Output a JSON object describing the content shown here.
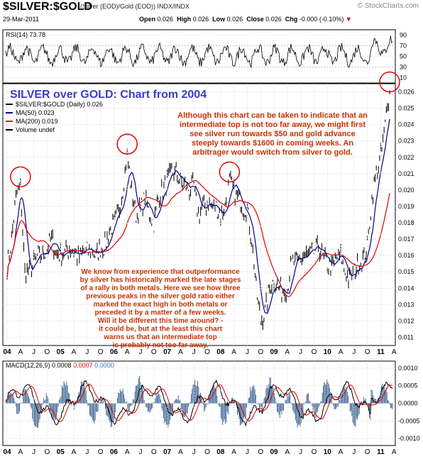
{
  "header": {
    "symbol": "$SILVER:$GOLD",
    "subtitle": "(Silver (EOD)/Gold (EOD)) INDX/INDX",
    "source": "© StockCharts.com",
    "date": "29-Mar-2011",
    "open_label": "Open",
    "open": "0.026",
    "high_label": "High",
    "high": "0.026",
    "low_label": "Low",
    "low": "0.026",
    "close_label": "Close",
    "close": "0.026",
    "chg_label": "Chg",
    "chg": "-0.000 (-0.10%)",
    "chg_arrow": "▼"
  },
  "rsi": {
    "label": "RSI(14) 73.78",
    "ticks": [
      "90",
      "70",
      "50",
      "30",
      "10"
    ]
  },
  "main": {
    "headline": "SILVER over GOLD: Chart from 2004",
    "legend_symbol": "$SILVER:$GOLD (Daily) 0.026",
    "legend_ma50": "MA(50) 0.023",
    "legend_ma200": "MA(200) 0.019",
    "legend_volume": "Volume undef",
    "annotation_top": [
      "Although this chart can be taken to indicate that an",
      "intermediate top is not too far away, we might first",
      "see silver run towards $50 and gold advance",
      "steeply towards $1600 in coming weeks. An",
      "arbitrager would switch from silver to gold."
    ],
    "annotation_bottom": [
      "We know from experience that outperformance",
      "by silver has historically marked the late stages",
      "of a rally in both metals. Here we see how three",
      "previous peaks in the silver gold ratio either",
      "marked the exact high in both metals or",
      "preceded it by a matter of a few weeks.",
      "Will it be different this time around? -",
      "it could be, but at the least this chart",
      "warns us that an intermediate top",
      "is probably not too far away."
    ],
    "y_ticks": [
      "0.026",
      "0.025",
      "0.024",
      "0.023",
      "0.022",
      "0.021",
      "0.020",
      "0.019",
      "0.018",
      "0.017",
      "0.016",
      "0.015",
      "0.014",
      "0.013",
      "0.012",
      "0.011"
    ]
  },
  "x_axis_labels": [
    "04",
    "A",
    "J",
    "O",
    "05",
    "A",
    "J",
    "O",
    "06",
    "A",
    "J",
    "O",
    "07",
    "A",
    "J",
    "O",
    "08",
    "A",
    "J",
    "O",
    "09",
    "A",
    "J",
    "O",
    "10",
    "A",
    "J",
    "O",
    "11",
    "A"
  ],
  "macd": {
    "label_prefix": "MACD(12,26,9)",
    "value1": "0.0008",
    "value2": "0.0007",
    "value3": "0.0000",
    "ticks": [
      "0.0010",
      "0.0005",
      "0.0000",
      "-0.0005",
      "-0.0010"
    ]
  },
  "colors": {
    "price": "#000000",
    "ma50": "#00008b",
    "ma200": "#dd0000",
    "annotation": "#c83200",
    "headline": "#3c3cc8",
    "circle": "#e00000",
    "macd_hist": "#4a6f9a"
  },
  "chart_data": {
    "type": "line",
    "title": "SILVER over GOLD: Chart from 2004",
    "x_range": [
      "2004-01",
      "2011-03"
    ],
    "ylim": [
      0.0105,
      0.0265
    ],
    "series": [
      {
        "name": "$SILVER:$GOLD (Daily)",
        "x": [
          "2004-01",
          "2004-02",
          "2004-03",
          "2004-04",
          "2004-05",
          "2004-06",
          "2004-07",
          "2004-08",
          "2004-09",
          "2004-10",
          "2004-11",
          "2004-12",
          "2005-01",
          "2005-02",
          "2005-03",
          "2005-04",
          "2005-05",
          "2005-06",
          "2005-07",
          "2005-08",
          "2005-09",
          "2005-10",
          "2005-11",
          "2005-12",
          "2006-01",
          "2006-02",
          "2006-03",
          "2006-04",
          "2006-05",
          "2006-06",
          "2006-07",
          "2006-08",
          "2006-09",
          "2006-10",
          "2006-11",
          "2006-12",
          "2007-01",
          "2007-02",
          "2007-03",
          "2007-04",
          "2007-05",
          "2007-06",
          "2007-07",
          "2007-08",
          "2007-09",
          "2007-10",
          "2007-11",
          "2007-12",
          "2008-01",
          "2008-02",
          "2008-03",
          "2008-04",
          "2008-05",
          "2008-06",
          "2008-07",
          "2008-08",
          "2008-09",
          "2008-10",
          "2008-11",
          "2008-12",
          "2009-01",
          "2009-02",
          "2009-03",
          "2009-04",
          "2009-05",
          "2009-06",
          "2009-07",
          "2009-08",
          "2009-09",
          "2009-10",
          "2009-11",
          "2009-12",
          "2010-01",
          "2010-02",
          "2010-03",
          "2010-04",
          "2010-05",
          "2010-06",
          "2010-07",
          "2010-08",
          "2010-09",
          "2010-10",
          "2010-11",
          "2010-12",
          "2011-01",
          "2011-02",
          "2011-03"
        ],
        "values": [
          0.0152,
          0.017,
          0.0195,
          0.0202,
          0.015,
          0.015,
          0.0155,
          0.016,
          0.016,
          0.0165,
          0.017,
          0.0162,
          0.016,
          0.0162,
          0.0165,
          0.0163,
          0.0158,
          0.0162,
          0.0163,
          0.0163,
          0.016,
          0.0165,
          0.0166,
          0.0175,
          0.018,
          0.0185,
          0.02,
          0.0222,
          0.02,
          0.0185,
          0.0188,
          0.0195,
          0.0185,
          0.018,
          0.0195,
          0.02,
          0.0205,
          0.021,
          0.021,
          0.0205,
          0.0203,
          0.02,
          0.0202,
          0.0185,
          0.019,
          0.0192,
          0.019,
          0.019,
          0.0185,
          0.019,
          0.0205,
          0.0198,
          0.0195,
          0.019,
          0.0188,
          0.017,
          0.014,
          0.012,
          0.0125,
          0.014,
          0.0145,
          0.014,
          0.0138,
          0.014,
          0.0155,
          0.0155,
          0.0158,
          0.016,
          0.016,
          0.0162,
          0.0165,
          0.0158,
          0.0155,
          0.0152,
          0.0158,
          0.016,
          0.015,
          0.0145,
          0.015,
          0.0155,
          0.0158,
          0.0165,
          0.0195,
          0.021,
          0.022,
          0.024,
          0.026
        ]
      },
      {
        "name": "MA(50)",
        "values_last": 0.023
      },
      {
        "name": "MA(200)",
        "values_last": 0.019
      }
    ],
    "rsi": {
      "range": [
        10,
        90
      ],
      "last": 73.78
    },
    "macd": {
      "ylim": [
        -0.001,
        0.001
      ],
      "macd_last": 0.0008,
      "signal_last": 0.0007,
      "hist_last": 0.0
    },
    "highlighted_peaks": [
      "2004-04",
      "2006-04",
      "2008-03",
      "2011-03"
    ]
  }
}
